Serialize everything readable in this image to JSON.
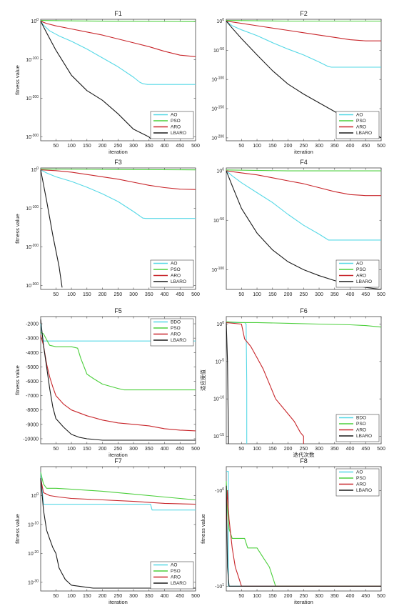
{
  "colors": {
    "cyan": "#56d8e6",
    "green": "#4ccf3c",
    "red": "#c8262b",
    "black": "#1a1a1a"
  },
  "chart_data": [
    {
      "type": "line",
      "title": "F1",
      "xlabel": "iteration",
      "ylabel": "fitness value",
      "y_scale": "log",
      "xlim": [
        1,
        500
      ],
      "ylim": [
        -310,
        5
      ],
      "x_ticks": [
        50,
        100,
        150,
        200,
        250,
        300,
        350,
        400,
        450,
        500
      ],
      "y_ticks": [
        0,
        -100,
        -200,
        -300
      ],
      "y_tick_labels": [
        "10^0",
        "10^-100",
        "10^-200",
        "10^-300"
      ],
      "legend_position": "bottom-right",
      "series": [
        {
          "name": "AO",
          "color": "cyan",
          "x": [
            1,
            10,
            30,
            60,
            100,
            150,
            200,
            250,
            300,
            320,
            330,
            345,
            500
          ],
          "y": [
            0,
            -10,
            -25,
            -38,
            -52,
            -72,
            -95,
            -118,
            -145,
            -158,
            -162,
            -164,
            -164
          ]
        },
        {
          "name": "PSO",
          "color": "green",
          "x": [
            1,
            100,
            250,
            500
          ],
          "y": [
            2,
            1,
            0,
            -1
          ]
        },
        {
          "name": "ARO",
          "color": "red",
          "x": [
            1,
            20,
            50,
            100,
            150,
            200,
            250,
            300,
            350,
            400,
            450,
            500
          ],
          "y": [
            0,
            -6,
            -12,
            -20,
            -28,
            -36,
            -46,
            -56,
            -66,
            -78,
            -88,
            -92
          ]
        },
        {
          "name": "LBARO",
          "color": "black",
          "x": [
            1,
            20,
            50,
            100,
            150,
            200,
            250,
            300,
            350,
            355
          ],
          "y": [
            0,
            -30,
            -75,
            -140,
            -180,
            -205,
            -240,
            -280,
            -300,
            -305
          ]
        }
      ]
    },
    {
      "type": "line",
      "title": "F2",
      "xlabel": "iteration",
      "ylabel": "",
      "y_scale": "log",
      "xlim": [
        1,
        500
      ],
      "ylim": [
        -205,
        3
      ],
      "x_ticks": [
        50,
        100,
        150,
        200,
        250,
        300,
        350,
        400,
        450,
        500
      ],
      "y_ticks": [
        0,
        -50,
        -100,
        -150,
        -200
      ],
      "y_tick_labels": [
        "10^0",
        "10^-50",
        "10^-100",
        "10^-150",
        "10^-200"
      ],
      "legend_position": "bottom-right",
      "series": [
        {
          "name": "AO",
          "color": "cyan",
          "x": [
            1,
            20,
            50,
            100,
            150,
            200,
            250,
            300,
            330,
            340,
            500
          ],
          "y": [
            0,
            -8,
            -15,
            -25,
            -37,
            -48,
            -58,
            -70,
            -78,
            -79,
            -79
          ]
        },
        {
          "name": "PSO",
          "color": "green",
          "x": [
            1,
            200,
            500
          ],
          "y": [
            1,
            0,
            0
          ]
        },
        {
          "name": "ARO",
          "color": "red",
          "x": [
            1,
            50,
            100,
            150,
            200,
            250,
            300,
            350,
            400,
            450,
            500
          ],
          "y": [
            0,
            -4,
            -8,
            -12,
            -16,
            -20,
            -24,
            -28,
            -32,
            -34,
            -34
          ]
        },
        {
          "name": "LBARO",
          "color": "black",
          "x": [
            1,
            20,
            50,
            100,
            150,
            200,
            250,
            300,
            350,
            400,
            450,
            500
          ],
          "y": [
            0,
            -12,
            -30,
            -58,
            -85,
            -108,
            -125,
            -140,
            -155,
            -170,
            -185,
            -200
          ]
        }
      ]
    },
    {
      "type": "line",
      "title": "F3",
      "xlabel": "",
      "ylabel": "fitness value",
      "y_scale": "log",
      "xlim": [
        1,
        500
      ],
      "ylim": [
        -310,
        5
      ],
      "x_ticks": [
        50,
        100,
        150,
        200,
        250,
        300,
        350,
        400,
        450,
        500
      ],
      "y_ticks": [
        0,
        -100,
        -200,
        -300
      ],
      "y_tick_labels": [
        "10^0",
        "10^-100",
        "10^-200",
        "10^-300"
      ],
      "legend_position": "bottom-right",
      "series": [
        {
          "name": "AO",
          "color": "cyan",
          "x": [
            1,
            20,
            50,
            100,
            150,
            200,
            250,
            300,
            330,
            340,
            500
          ],
          "y": [
            0,
            -8,
            -18,
            -30,
            -45,
            -62,
            -82,
            -108,
            -125,
            -126,
            -126
          ]
        },
        {
          "name": "PSO",
          "color": "green",
          "x": [
            1,
            250,
            500
          ],
          "y": [
            2,
            1,
            0
          ]
        },
        {
          "name": "ARO",
          "color": "red",
          "x": [
            1,
            50,
            100,
            150,
            200,
            250,
            300,
            350,
            400,
            450,
            500
          ],
          "y": [
            0,
            -2,
            -6,
            -12,
            -18,
            -24,
            -32,
            -40,
            -46,
            -50,
            -51
          ]
        },
        {
          "name": "LBARO",
          "color": "black",
          "x": [
            1,
            20,
            40,
            60,
            70
          ],
          "y": [
            0,
            -80,
            -170,
            -250,
            -305
          ]
        }
      ]
    },
    {
      "type": "line",
      "title": "F4",
      "xlabel": "",
      "ylabel": "",
      "y_scale": "log",
      "xlim": [
        1,
        500
      ],
      "ylim": [
        -120,
        3
      ],
      "x_ticks": [
        50,
        100,
        150,
        200,
        250,
        300,
        350,
        400,
        450,
        500
      ],
      "y_ticks": [
        0,
        -50,
        -100
      ],
      "y_tick_labels": [
        "10^0",
        "10^-50",
        "10^-100"
      ],
      "legend_position": "bottom-right",
      "series": [
        {
          "name": "AO",
          "color": "cyan",
          "x": [
            1,
            20,
            50,
            100,
            150,
            200,
            250,
            300,
            330,
            340,
            500
          ],
          "y": [
            0,
            -5,
            -12,
            -22,
            -32,
            -44,
            -55,
            -64,
            -70,
            -70,
            -70
          ]
        },
        {
          "name": "PSO",
          "color": "green",
          "x": [
            1,
            200,
            500
          ],
          "y": [
            1,
            0,
            0
          ]
        },
        {
          "name": "ARO",
          "color": "red",
          "x": [
            1,
            50,
            100,
            150,
            200,
            250,
            300,
            350,
            400,
            450,
            500
          ],
          "y": [
            0,
            -2,
            -4,
            -7,
            -10,
            -13,
            -17,
            -21,
            -24,
            -25,
            -25
          ]
        },
        {
          "name": "LBARO",
          "color": "black",
          "x": [
            1,
            20,
            50,
            100,
            150,
            200,
            250,
            300,
            350,
            400,
            450,
            500
          ],
          "y": [
            0,
            -15,
            -38,
            -63,
            -80,
            -92,
            -100,
            -106,
            -111,
            -115,
            -118,
            -120
          ]
        }
      ]
    },
    {
      "type": "line",
      "title": "F5",
      "xlabel": "iteration",
      "ylabel": "fitness value",
      "y_scale": "linear",
      "xlim": [
        1,
        500
      ],
      "ylim": [
        -10350,
        -1500
      ],
      "x_ticks": [
        50,
        100,
        150,
        200,
        250,
        300,
        350,
        400,
        450,
        500
      ],
      "y_ticks": [
        -2000,
        -3000,
        -4000,
        -5000,
        -6000,
        -7000,
        -8000,
        -9000,
        -10000
      ],
      "y_tick_labels": [
        "-2000",
        "-3000",
        "-4000",
        "-5000",
        "-6000",
        "-7000",
        "-8000",
        "-9000",
        "-10000"
      ],
      "legend_position": "top-right",
      "series": [
        {
          "name": "BDO",
          "color": "cyan",
          "x": [
            1,
            5,
            10,
            500
          ],
          "y": [
            -2000,
            -2700,
            -3200,
            -3200
          ]
        },
        {
          "name": "PSO",
          "color": "green",
          "x": [
            1,
            10,
            25,
            30,
            50,
            100,
            120,
            130,
            150,
            170,
            200,
            250,
            270,
            500
          ],
          "y": [
            -2600,
            -2700,
            -3300,
            -3500,
            -3600,
            -3600,
            -3700,
            -4400,
            -5500,
            -5800,
            -6200,
            -6500,
            -6600,
            -6600
          ]
        },
        {
          "name": "ARO",
          "color": "red",
          "x": [
            1,
            10,
            20,
            30,
            40,
            50,
            75,
            100,
            150,
            200,
            250,
            300,
            350,
            400,
            450,
            500
          ],
          "y": [
            -2800,
            -3500,
            -4800,
            -5700,
            -6400,
            -7000,
            -7600,
            -8000,
            -8400,
            -8700,
            -8900,
            -9000,
            -9100,
            -9300,
            -9400,
            -9450
          ]
        },
        {
          "name": "LBARO",
          "color": "black",
          "x": [
            1,
            10,
            20,
            30,
            40,
            50,
            75,
            100,
            125,
            150,
            175,
            200,
            500
          ],
          "y": [
            -1700,
            -3500,
            -5000,
            -6500,
            -7800,
            -8600,
            -9200,
            -9700,
            -9900,
            -10000,
            -10050,
            -10100,
            -10100
          ]
        }
      ]
    },
    {
      "type": "line",
      "title": "F6",
      "xlabel": "迭代次数",
      "ylabel": "适应度值",
      "y_scale": "log",
      "xlim": [
        1,
        500
      ],
      "ylim": [
        -16,
        1
      ],
      "x_ticks": [
        50,
        100,
        150,
        200,
        250,
        300,
        350,
        400,
        450,
        500
      ],
      "y_ticks": [
        0,
        -5,
        -10,
        -15
      ],
      "y_tick_labels": [
        "10^0",
        "10^-5",
        "10^-10",
        "10^-15"
      ],
      "legend_position": "bottom-right",
      "series": [
        {
          "name": "BDO",
          "color": "cyan",
          "x": [
            1,
            60,
            65,
            67,
            67
          ],
          "y": [
            0.2,
            0.2,
            0,
            -8,
            -16
          ]
        },
        {
          "name": "PSO",
          "color": "green",
          "x": [
            1,
            50,
            100,
            200,
            300,
            400,
            450,
            500
          ],
          "y": [
            0.3,
            0.2,
            0.2,
            0.1,
            0,
            -0.1,
            -0.2,
            -0.4
          ]
        },
        {
          "name": "ARO",
          "color": "red",
          "x": [
            1,
            50,
            60,
            80,
            100,
            120,
            140,
            160,
            180,
            200,
            220,
            240,
            250,
            250
          ],
          "y": [
            0.2,
            0,
            -2,
            -3,
            -4.5,
            -6,
            -8,
            -10,
            -11,
            -12,
            -13,
            -14.5,
            -15,
            -16
          ]
        },
        {
          "name": "LBARO",
          "color": "black",
          "x": [
            1,
            5,
            8,
            8
          ],
          "y": [
            0.2,
            -5,
            -15,
            -16
          ]
        }
      ]
    },
    {
      "type": "line",
      "title": "F7",
      "xlabel": "iteration",
      "ylabel": "fitness value",
      "y_scale": "log",
      "xlim": [
        1,
        500
      ],
      "ylim": [
        -33,
        10
      ],
      "x_ticks": [
        50,
        100,
        150,
        200,
        250,
        300,
        350,
        400,
        450,
        500
      ],
      "y_ticks": [
        0,
        -10,
        -20,
        -30
      ],
      "y_tick_labels": [
        "10^0",
        "10^-10",
        "10^-20",
        "10^-30"
      ],
      "legend_position": "bottom-right",
      "series": [
        {
          "name": "AO",
          "color": "cyan",
          "x": [
            1,
            10,
            50,
            355,
            360,
            500
          ],
          "y": [
            8,
            -3,
            -3,
            -3,
            -5,
            -5
          ]
        },
        {
          "name": "PSO",
          "color": "green",
          "x": [
            1,
            10,
            20,
            50,
            100,
            200,
            300,
            400,
            500
          ],
          "y": [
            8,
            4,
            2.5,
            2.5,
            2.2,
            1.5,
            0.5,
            -0.5,
            -1.5
          ]
        },
        {
          "name": "ARO",
          "color": "red",
          "x": [
            1,
            10,
            30,
            60,
            100,
            200,
            300,
            400,
            500
          ],
          "y": [
            6,
            1,
            0,
            -0.5,
            -1,
            -1.5,
            -2,
            -2.7,
            -3
          ]
        },
        {
          "name": "LBARO",
          "color": "black",
          "x": [
            1,
            10,
            20,
            30,
            40,
            50,
            60,
            70,
            80,
            90,
            100,
            170,
            500
          ],
          "y": [
            6,
            -5,
            -12,
            -15,
            -18,
            -20,
            -25,
            -27,
            -29,
            -30,
            -31,
            -32,
            -32
          ]
        }
      ]
    },
    {
      "type": "line",
      "title": "F8",
      "xlabel": "iteration",
      "ylabel": "fitness value",
      "y_scale": "log-negative",
      "xlim": [
        1,
        500
      ],
      "ylim": [
        -1.05,
        0.25
      ],
      "x_ticks": [
        50,
        100,
        150,
        200,
        250,
        300,
        350,
        400,
        450,
        500
      ],
      "y_ticks": [
        0,
        -1
      ],
      "y_tick_labels": [
        "-10^0",
        "-10^1"
      ],
      "legend_position": "top-right",
      "series": [
        {
          "name": "AO",
          "color": "cyan",
          "x": [
            1,
            8,
            8,
            12,
            500
          ],
          "y": [
            0.2,
            0.2,
            -1.0,
            -1.0,
            -1.0
          ]
        },
        {
          "name": "PSO",
          "color": "green",
          "x": [
            1,
            5,
            10,
            20,
            60,
            70,
            100,
            120,
            140,
            150,
            160,
            170,
            200,
            500
          ],
          "y": [
            0.1,
            -0.2,
            -0.4,
            -0.5,
            -0.5,
            -0.6,
            -0.6,
            -0.7,
            -0.8,
            -0.9,
            -1.0,
            -1.0,
            -1.0,
            -1.0
          ]
        },
        {
          "name": "ARO",
          "color": "red",
          "x": [
            1,
            5,
            10,
            20,
            30,
            40,
            50,
            60,
            70,
            100,
            500
          ],
          "y": [
            -0.3,
            0.0,
            -0.3,
            -0.6,
            -0.8,
            -0.9,
            -1.0,
            -1.0,
            -1.0,
            -1.0,
            -1.0
          ]
        },
        {
          "name": "LBARO",
          "color": "black",
          "x": [
            1,
            5,
            10,
            20,
            500
          ],
          "y": [
            0.05,
            -0.8,
            -1.0,
            -1.0,
            -1.0
          ]
        }
      ]
    }
  ]
}
